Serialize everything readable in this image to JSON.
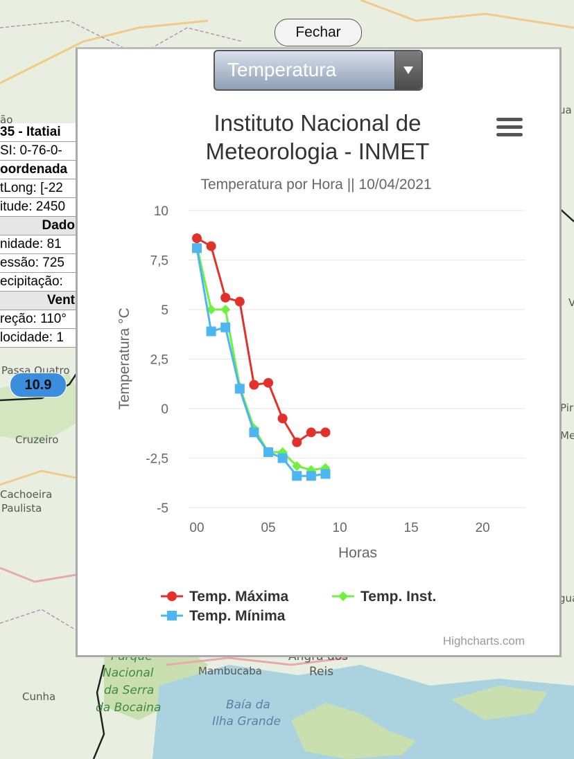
{
  "map": {
    "labels": [
      "Passa Quatro",
      "Cruzeiro",
      "Cachoeira",
      "Paulista",
      "Cunha",
      "Parque",
      "Nacional",
      "da Serra",
      "da Bocaina",
      "Mambucaba",
      "Angra dos",
      "Reis",
      "Baía da",
      "Ilha Grande",
      "ão",
      "ua",
      "V",
      "Pira",
      "Me",
      "gua"
    ],
    "colors": {
      "land": "#e9efe0",
      "forest": "#c9dfb0",
      "water": "#aad3df"
    }
  },
  "station_panel": {
    "rows": [
      "35 - Itatiai",
      "SI: 0-76-0-",
      "oordenada",
      "tLong: [-22",
      "itude: 2450",
      "Dado",
      "nidade: 81",
      "essão: 725",
      "ecipitação:",
      "Vent",
      "reção: 110°",
      "locidade: 1"
    ]
  },
  "marker": {
    "value": "10.9"
  },
  "close_button": {
    "label": "Fechar"
  },
  "selector": {
    "value": "Temperatura"
  },
  "chart_data": {
    "type": "line",
    "title": "Instituto Nacional de Meteorologia - INMET",
    "title_lines": [
      "Instituto Nacional de",
      "Meteorologia - INMET"
    ],
    "subtitle": "Temperatura por Hora || 10/04/2021",
    "xlabel": "Horas",
    "ylabel": "Temperatura °C",
    "xlim": [
      0,
      23
    ],
    "ylim": [
      -5,
      10
    ],
    "x_ticks": [
      "00",
      "05",
      "10",
      "15",
      "20"
    ],
    "x_tick_values": [
      0,
      5,
      10,
      15,
      20
    ],
    "y_ticks": [
      "10",
      "7,5",
      "5",
      "2,5",
      "0",
      "-2,5",
      "-5"
    ],
    "y_tick_values": [
      10,
      7.5,
      5,
      2.5,
      0,
      -2.5,
      -5
    ],
    "grid": "horizontal",
    "legend": "bottom",
    "credits": "Highcharts.com",
    "series": [
      {
        "name": "Temp. Máxima",
        "color": "#e2302a",
        "marker": "circle",
        "x": [
          0,
          1,
          2,
          3,
          4,
          5,
          6,
          7,
          8,
          9
        ],
        "values": [
          8.6,
          8.2,
          5.6,
          5.4,
          1.2,
          1.3,
          -0.5,
          -1.7,
          -1.2,
          -1.2
        ]
      },
      {
        "name": "Temp. Inst.",
        "color": "#6ef23c",
        "marker": "diamond",
        "x": [
          0,
          1,
          2,
          3,
          4,
          5,
          6,
          7,
          8,
          9
        ],
        "values": [
          8.2,
          5.0,
          5.0,
          1.1,
          -1.0,
          -2.2,
          -2.2,
          -2.9,
          -3.1,
          -3.0
        ]
      },
      {
        "name": "Temp. Mínima",
        "color": "#4db5f0",
        "marker": "square",
        "x": [
          0,
          1,
          2,
          3,
          4,
          5,
          6,
          7,
          8,
          9
        ],
        "values": [
          8.1,
          3.9,
          4.1,
          1.0,
          -1.2,
          -2.2,
          -2.5,
          -3.4,
          -3.4,
          -3.3
        ]
      }
    ]
  }
}
